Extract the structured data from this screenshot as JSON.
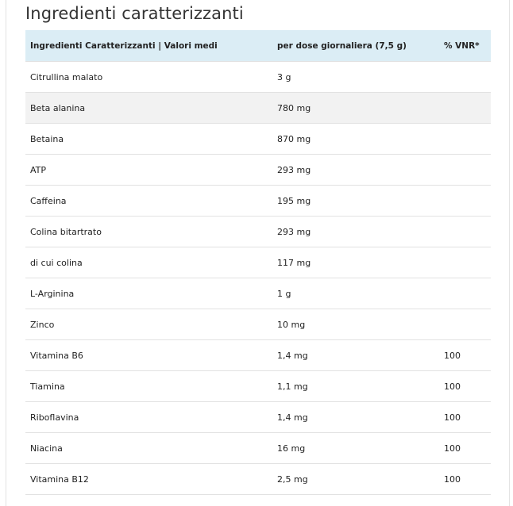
{
  "title": "Ingredienti caratterizzanti",
  "table": {
    "headers": [
      "Ingredienti Caratterizzanti | Valori medi",
      "per dose giornaliera (7,5 g)",
      "% VNR*"
    ],
    "rows": [
      [
        "Citrullina malato",
        "3 g",
        ""
      ],
      [
        "Beta alanina",
        "780 mg",
        ""
      ],
      [
        "Betaina",
        "870 mg",
        ""
      ],
      [
        "ATP",
        "293 mg",
        ""
      ],
      [
        "Caffeina",
        "195 mg",
        ""
      ],
      [
        "Colina bitartrato",
        "293 mg",
        ""
      ],
      [
        "di cui colina",
        "117 mg",
        ""
      ],
      [
        "L-Arginina",
        "1 g",
        ""
      ],
      [
        "Zinco",
        "10 mg",
        ""
      ],
      [
        "Vitamina B6",
        "1,4 mg",
        "100"
      ],
      [
        "Tiamina",
        "1,1 mg",
        "100"
      ],
      [
        "Riboflavina",
        "1,4 mg",
        "100"
      ],
      [
        "Niacina",
        "16 mg",
        "100"
      ],
      [
        "Vitamina B12",
        "2,5 mg",
        "100"
      ]
    ]
  },
  "colors": {
    "header_bg": "#dbedf5",
    "highlight_row_bg": "#f2f2f2"
  }
}
